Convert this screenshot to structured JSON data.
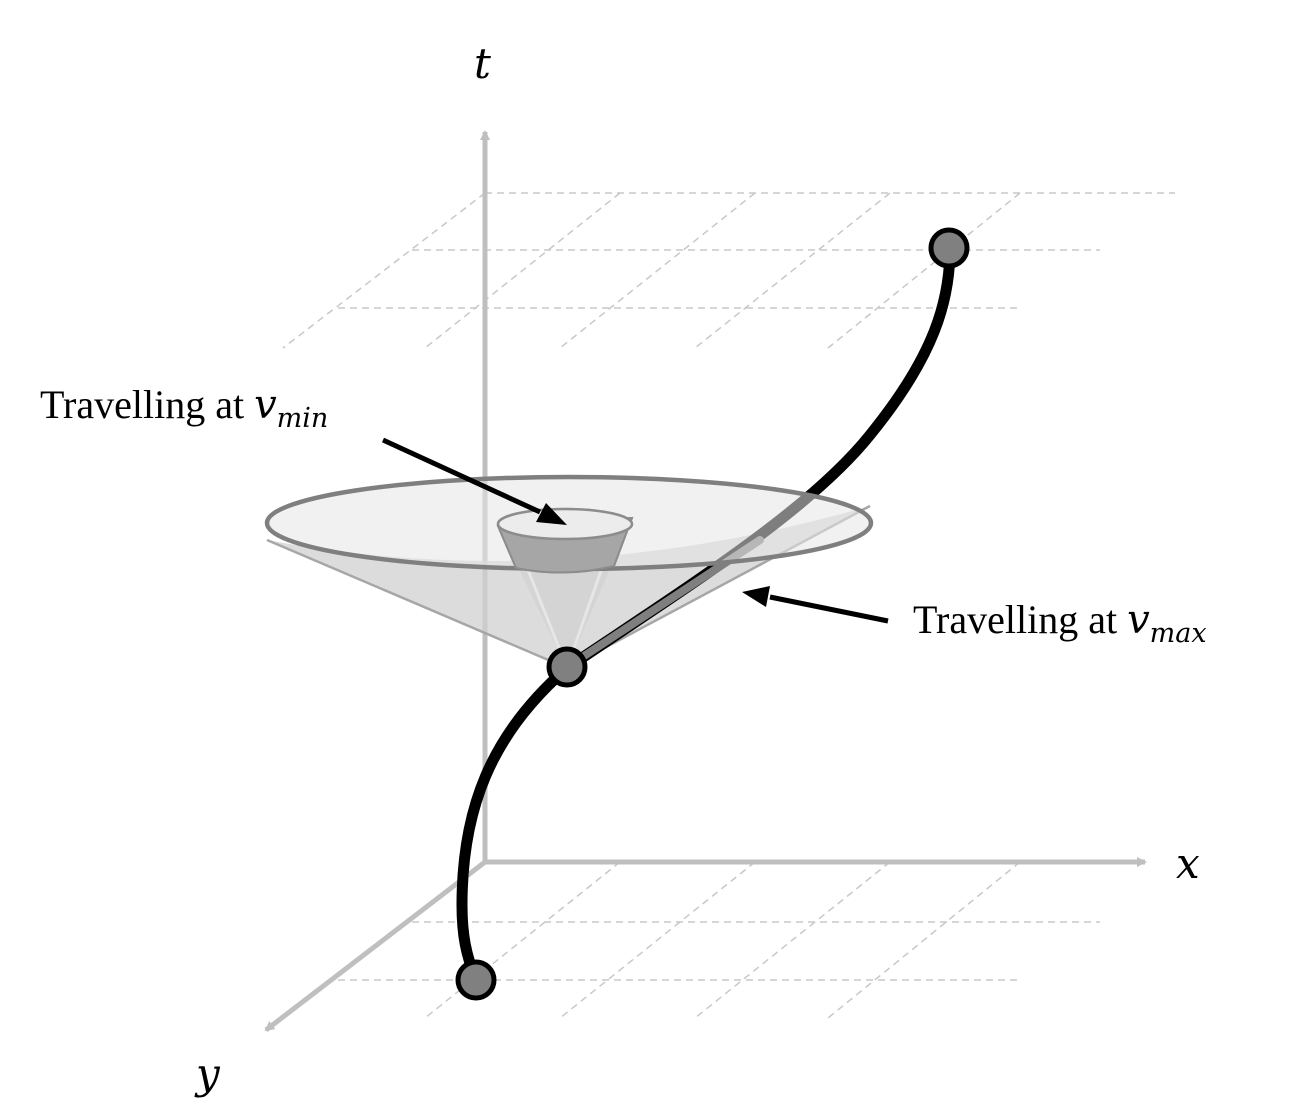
{
  "axes": {
    "t_label": "t",
    "x_label": "x",
    "y_label": "y"
  },
  "annotations": {
    "min": {
      "prefix": "Travelling at ",
      "var": "v",
      "sub": "min"
    },
    "max": {
      "prefix": "Travelling at ",
      "var": "v",
      "sub": "max"
    }
  },
  "colors": {
    "axis": "#bfbfbf",
    "grid": "#c8c8c8",
    "trajectory": "#000000",
    "waypoint_fill": "#808080",
    "outer_cone_fill": "#d9d9d9",
    "outer_cone_stroke": "#7f7f7f",
    "inner_cone_fill": "#a6a6a6",
    "arrow": "#000000"
  }
}
